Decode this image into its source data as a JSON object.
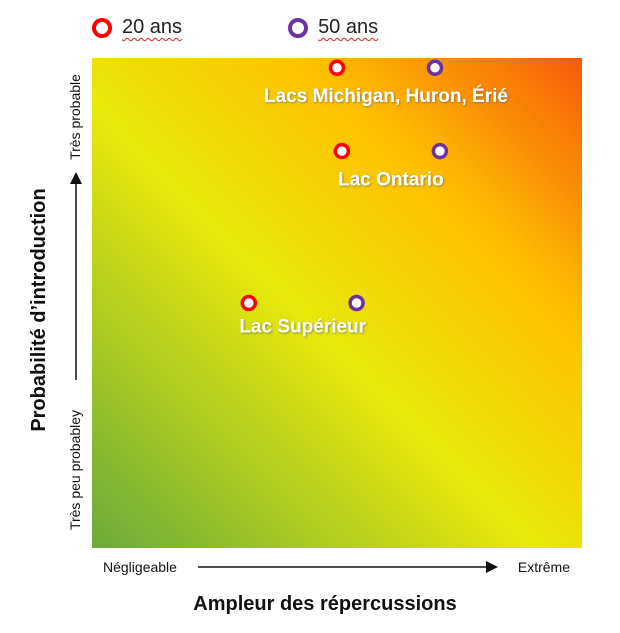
{
  "legend": {
    "items": [
      {
        "label": "20 ans",
        "color": "#ff0000"
      },
      {
        "label": "50 ans",
        "color": "#7030a0"
      }
    ]
  },
  "axes": {
    "x_title": "Ampleur des répercussions",
    "y_title": "Probabilité d’introduction",
    "x_low": "Négligeable",
    "x_high": "Extrême",
    "y_low": "Très peu probabley",
    "y_high": "Très probable"
  },
  "chart_data": {
    "type": "scatter",
    "title": "",
    "xlabel": "Ampleur des répercussions",
    "ylabel": "Probabilité d’introduction",
    "xlim": [
      0,
      1
    ],
    "ylim": [
      0,
      1
    ],
    "gradient_colors": [
      "#6aaa3a",
      "#e8e80a",
      "#ffc000",
      "#f55a0a"
    ],
    "series": [
      {
        "name": "20 ans",
        "color": "#ff0000",
        "points": [
          {
            "x": 0.5,
            "y": 0.98,
            "group": "Lacs Michigan, Huron, Érié"
          },
          {
            "x": 0.51,
            "y": 0.81,
            "group": "Lac Ontario"
          },
          {
            "x": 0.32,
            "y": 0.5,
            "group": "Lac Supérieur"
          }
        ]
      },
      {
        "name": "50 ans",
        "color": "#7030a0",
        "points": [
          {
            "x": 0.7,
            "y": 0.98,
            "group": "Lacs Michigan, Huron, Érié"
          },
          {
            "x": 0.71,
            "y": 0.81,
            "group": "Lac Ontario"
          },
          {
            "x": 0.54,
            "y": 0.5,
            "group": "Lac Supérieur"
          }
        ]
      }
    ],
    "annotations": [
      {
        "text": "Lacs Michigan, Huron, Érié",
        "x": 0.6,
        "y": 0.91
      },
      {
        "text": "Lac Ontario",
        "x": 0.61,
        "y": 0.74
      },
      {
        "text": "Lac Supérieur",
        "x": 0.43,
        "y": 0.44
      }
    ]
  }
}
